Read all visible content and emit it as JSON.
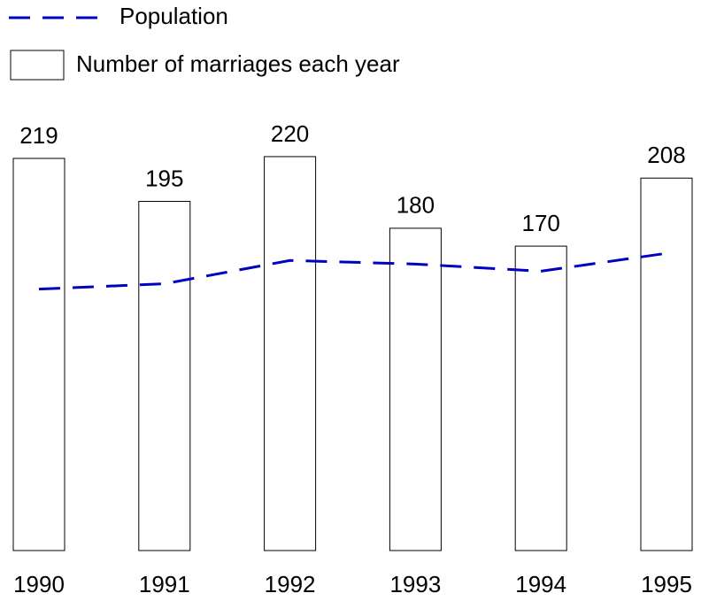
{
  "chart_data": {
    "type": "bar",
    "categories": [
      "1990",
      "1991",
      "1992",
      "1993",
      "1994",
      "1995"
    ],
    "series": [
      {
        "name": "Number of marriages each year",
        "color": "#ffffff",
        "values": [
          219,
          195,
          220,
          180,
          170,
          208
        ]
      },
      {
        "name": "Population",
        "color": "#0000c0",
        "type": "line",
        "dashed": true,
        "values": [
          146,
          149,
          162,
          160,
          156,
          166
        ]
      }
    ],
    "ylim": [
      0,
      240
    ]
  }
}
